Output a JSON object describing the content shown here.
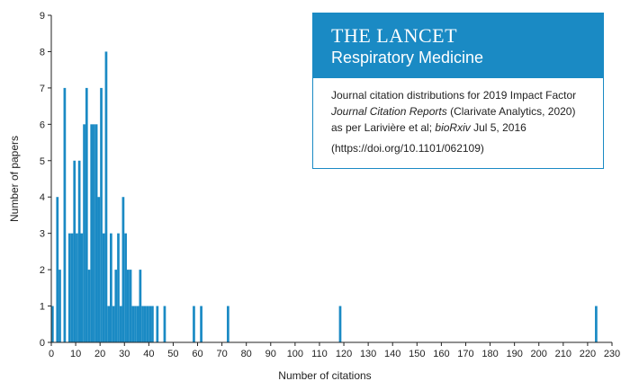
{
  "chart_data": {
    "type": "bar",
    "xlabel": "Number of citations",
    "ylabel": "Number of papers",
    "xlim": [
      0,
      230
    ],
    "ylim": [
      0,
      9
    ],
    "xticks": [
      0,
      10,
      20,
      30,
      40,
      50,
      60,
      70,
      80,
      90,
      100,
      110,
      120,
      130,
      140,
      150,
      160,
      170,
      180,
      190,
      200,
      210,
      220,
      230
    ],
    "yticks": [
      0,
      1,
      2,
      3,
      4,
      5,
      6,
      7,
      8,
      9
    ],
    "bar_width": 1,
    "bars": [
      {
        "x": 0,
        "y": 1
      },
      {
        "x": 2,
        "y": 4
      },
      {
        "x": 3,
        "y": 2
      },
      {
        "x": 5,
        "y": 7
      },
      {
        "x": 7,
        "y": 3
      },
      {
        "x": 8,
        "y": 3
      },
      {
        "x": 9,
        "y": 5
      },
      {
        "x": 10,
        "y": 3
      },
      {
        "x": 11,
        "y": 5
      },
      {
        "x": 12,
        "y": 3
      },
      {
        "x": 13,
        "y": 6
      },
      {
        "x": 14,
        "y": 7
      },
      {
        "x": 15,
        "y": 2
      },
      {
        "x": 16,
        "y": 6
      },
      {
        "x": 17,
        "y": 6
      },
      {
        "x": 18,
        "y": 6
      },
      {
        "x": 19,
        "y": 4
      },
      {
        "x": 20,
        "y": 7
      },
      {
        "x": 21,
        "y": 3
      },
      {
        "x": 22,
        "y": 8
      },
      {
        "x": 23,
        "y": 1
      },
      {
        "x": 24,
        "y": 3
      },
      {
        "x": 25,
        "y": 1
      },
      {
        "x": 26,
        "y": 2
      },
      {
        "x": 27,
        "y": 3
      },
      {
        "x": 28,
        "y": 1
      },
      {
        "x": 29,
        "y": 4
      },
      {
        "x": 30,
        "y": 3
      },
      {
        "x": 31,
        "y": 2
      },
      {
        "x": 32,
        "y": 2
      },
      {
        "x": 33,
        "y": 1
      },
      {
        "x": 34,
        "y": 1
      },
      {
        "x": 35,
        "y": 1
      },
      {
        "x": 36,
        "y": 2
      },
      {
        "x": 37,
        "y": 1
      },
      {
        "x": 38,
        "y": 1
      },
      {
        "x": 39,
        "y": 1
      },
      {
        "x": 40,
        "y": 1
      },
      {
        "x": 41,
        "y": 1
      },
      {
        "x": 43,
        "y": 1
      },
      {
        "x": 46,
        "y": 1
      },
      {
        "x": 58,
        "y": 1
      },
      {
        "x": 61,
        "y": 1
      },
      {
        "x": 72,
        "y": 1
      },
      {
        "x": 118,
        "y": 1
      },
      {
        "x": 223,
        "y": 1
      }
    ]
  },
  "infobox": {
    "journal_title": "THE LANCET",
    "journal_subtitle": "Respiratory Medicine",
    "line1": "Journal citation distributions for 2019 Impact Factor",
    "line2_italic": "Journal Citation Reports",
    "line2_rest": " (Clarivate Analytics, 2020)",
    "line3_pre": "as per Larivière et al; ",
    "line3_italic": "bioRxiv",
    "line3_rest": " Jul 5, 2016",
    "doi": "(https://doi.org/10.1101/062109)"
  },
  "colors": {
    "bar": "#1a8ac4",
    "header_bg": "#1a8ac4",
    "header_text": "#ffffff"
  }
}
